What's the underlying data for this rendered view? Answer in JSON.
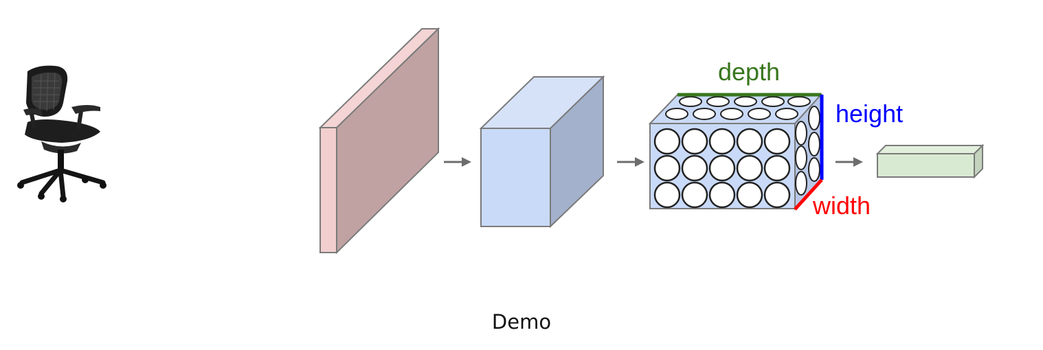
{
  "caption": "Demo",
  "labels": {
    "depth": "depth",
    "height": "height",
    "width": "width"
  },
  "colors": {
    "layer_front_pink": "#f2cece",
    "layer_side_pink": "#c0a2a2",
    "layer_front_blue": "#c9daf8",
    "layer_side_blue": "#a3b1cc",
    "conv_volume": "#c9daf8",
    "output_green": "#d9ead3",
    "depth_label": "#38761d",
    "height_label": "#0000ff",
    "width_label": "#ff0000",
    "arrow": "#6d6d6d",
    "outline": "#7a7a7a"
  },
  "icons": {
    "input_image": "office-chair-icon"
  }
}
